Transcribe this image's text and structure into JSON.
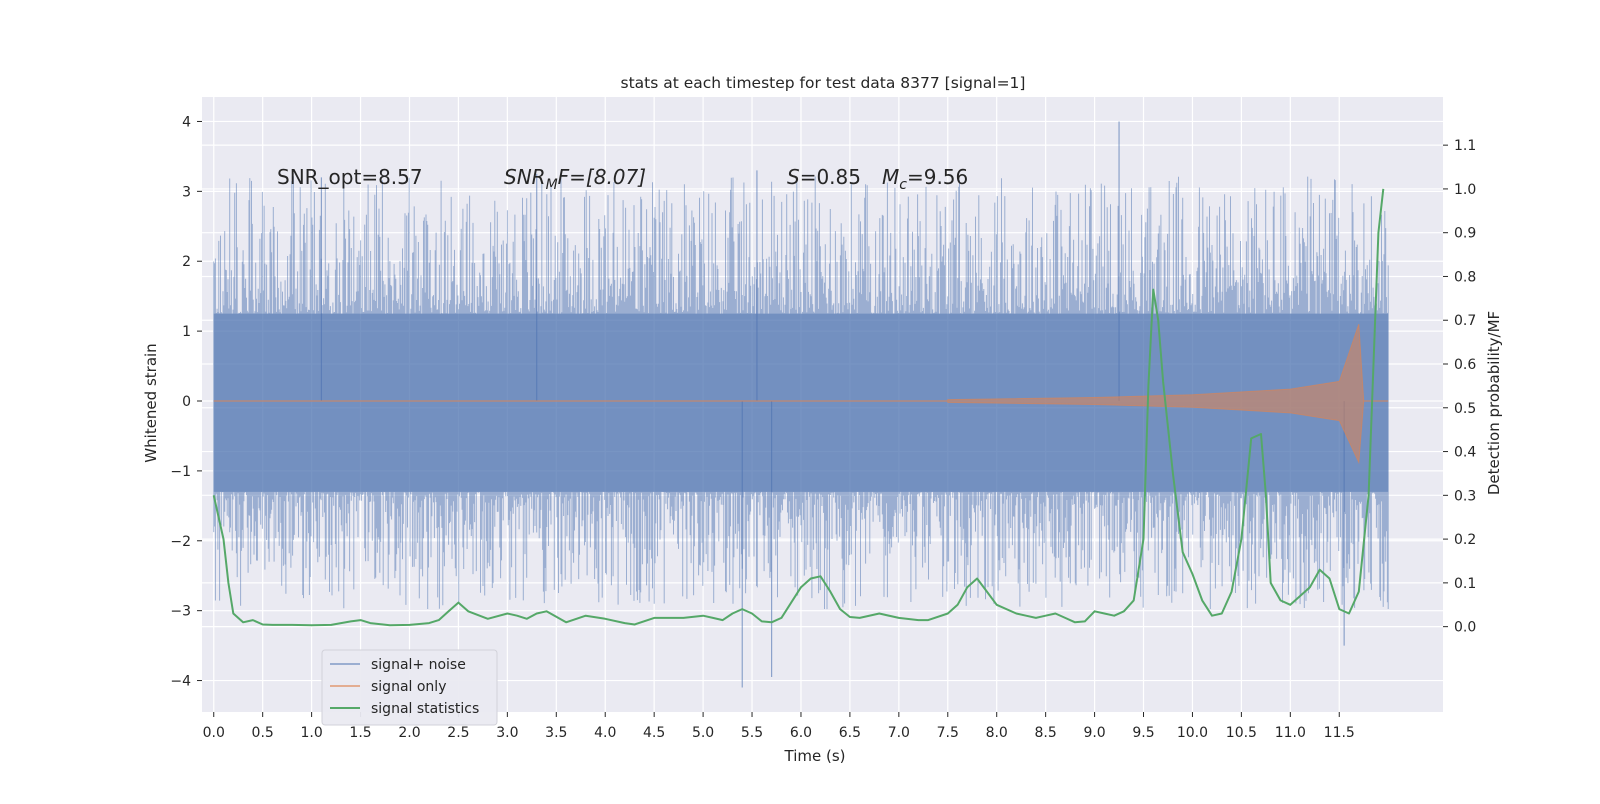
{
  "chart_data": {
    "type": "line",
    "title": "stats at each timestep for test data 8377 [signal=1]",
    "xlabel": "Time (s)",
    "ylabel_left": "Whitened strain",
    "ylabel_right": "Detection probability/MF",
    "xlim": [
      -0.12,
      12.56
    ],
    "ylim_left": [
      -4.45,
      4.35
    ],
    "ylim_right": [
      -0.195,
      1.21
    ],
    "x_ticks": [
      "0.0",
      "0.5",
      "1.0",
      "1.5",
      "2.0",
      "2.5",
      "3.0",
      "3.5",
      "4.0",
      "4.5",
      "5.0",
      "5.5",
      "6.0",
      "6.5",
      "7.0",
      "7.5",
      "8.0",
      "8.5",
      "9.0",
      "9.5",
      "10.0",
      "10.5",
      "11.0",
      "11.5"
    ],
    "y_left_ticks": [
      "4",
      "3",
      "2",
      "1",
      "0",
      "−1",
      "−2",
      "−3",
      "−4"
    ],
    "y_right_ticks": [
      "1.1",
      "1.0",
      "0.9",
      "0.8",
      "0.7",
      "0.6",
      "0.5",
      "0.4",
      "0.3",
      "0.2",
      "0.1",
      "0.0"
    ],
    "grid": true,
    "legend_position": "lower-left",
    "annotations": {
      "snr_opt": "SNR_opt=8.57",
      "snr_mf_sym": "SNR",
      "snr_mf_sub": "M",
      "snr_mf_rest": "F=[8.07]",
      "s_sym": "S",
      "s_val": "=0.85",
      "mc_sym": "M",
      "mc_sub": "c",
      "mc_val": "=9.56"
    },
    "series": [
      {
        "name": "signal+ noise",
        "color": "#4c72b0",
        "axis": "left",
        "description_range": "noisy whitened strain approximately within [-4.1, 4.0] over t in [0, 12]",
        "envelope": {
          "x": [
            0,
            12
          ],
          "core_low": -1.3,
          "core_high": 1.25,
          "spike_max": 4.0,
          "spike_min": -4.1
        }
      },
      {
        "name": "signal only",
        "color": "#dd8452",
        "axis": "left",
        "chirp_amplitude": {
          "x": [
            7.5,
            9.0,
            10.0,
            11.0,
            11.5,
            11.7,
            11.75
          ],
          "amp": [
            0.02,
            0.05,
            0.09,
            0.17,
            0.28,
            1.1,
            0.0
          ]
        }
      },
      {
        "name": "signal statistics",
        "color": "#55a868",
        "axis": "right",
        "x": [
          0.0,
          0.1,
          0.15,
          0.2,
          0.3,
          0.4,
          0.5,
          0.6,
          0.8,
          1.0,
          1.2,
          1.4,
          1.5,
          1.6,
          1.8,
          2.0,
          2.2,
          2.3,
          2.4,
          2.5,
          2.6,
          2.8,
          3.0,
          3.1,
          3.2,
          3.3,
          3.4,
          3.6,
          3.8,
          4.0,
          4.2,
          4.3,
          4.5,
          4.8,
          5.0,
          5.1,
          5.2,
          5.3,
          5.4,
          5.5,
          5.6,
          5.7,
          5.8,
          5.9,
          6.0,
          6.1,
          6.2,
          6.3,
          6.4,
          6.5,
          6.6,
          6.8,
          7.0,
          7.2,
          7.3,
          7.5,
          7.6,
          7.7,
          7.8,
          7.9,
          8.0,
          8.2,
          8.3,
          8.4,
          8.5,
          8.6,
          8.7,
          8.8,
          8.9,
          9.0,
          9.1,
          9.2,
          9.3,
          9.4,
          9.5,
          9.55,
          9.6,
          9.65,
          9.7,
          9.8,
          9.9,
          10.0,
          10.1,
          10.2,
          10.3,
          10.4,
          10.5,
          10.6,
          10.7,
          10.75,
          10.8,
          10.9,
          11.0,
          11.1,
          11.2,
          11.3,
          11.4,
          11.5,
          11.6,
          11.7,
          11.8,
          11.9,
          11.95
        ],
        "y": [
          0.3,
          0.2,
          0.1,
          0.03,
          0.01,
          0.015,
          0.005,
          0.004,
          0.004,
          0.003,
          0.004,
          0.012,
          0.015,
          0.008,
          0.003,
          0.004,
          0.008,
          0.015,
          0.035,
          0.055,
          0.035,
          0.018,
          0.03,
          0.025,
          0.018,
          0.03,
          0.035,
          0.01,
          0.025,
          0.018,
          0.008,
          0.005,
          0.02,
          0.02,
          0.025,
          0.02,
          0.015,
          0.03,
          0.04,
          0.03,
          0.012,
          0.01,
          0.02,
          0.055,
          0.09,
          0.11,
          0.115,
          0.08,
          0.04,
          0.022,
          0.02,
          0.03,
          0.02,
          0.015,
          0.015,
          0.03,
          0.05,
          0.09,
          0.11,
          0.08,
          0.05,
          0.03,
          0.025,
          0.02,
          0.025,
          0.03,
          0.02,
          0.01,
          0.012,
          0.035,
          0.03,
          0.025,
          0.035,
          0.06,
          0.2,
          0.55,
          0.77,
          0.7,
          0.56,
          0.35,
          0.17,
          0.12,
          0.06,
          0.025,
          0.03,
          0.08,
          0.2,
          0.43,
          0.44,
          0.3,
          0.1,
          0.06,
          0.05,
          0.07,
          0.09,
          0.13,
          0.11,
          0.04,
          0.03,
          0.08,
          0.3,
          0.9,
          1.0
        ]
      }
    ]
  }
}
